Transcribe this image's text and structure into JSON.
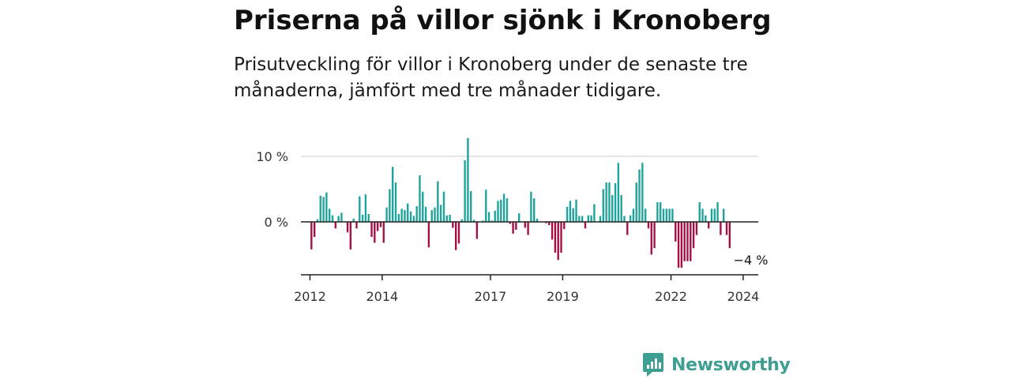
{
  "title": "Priserna på villor sjönk i Kronoberg",
  "subtitle": "Prisutveckling för villor i Kronoberg under de senaste tre månaderna, jämfört med tre månader tidigare.",
  "brand": {
    "name": "Newsworthy",
    "color": "#3e9e92"
  },
  "chart_data": {
    "type": "bar",
    "xlabel": "",
    "ylabel": "",
    "x_start": "2011-10",
    "x_end": "2024-06",
    "ylim": [
      -8,
      10
    ],
    "y_ticks": [
      {
        "value": 0,
        "label": "0 %"
      },
      {
        "value": 10,
        "label": "10 %"
      }
    ],
    "x_ticks": [
      {
        "date": "2012-01",
        "label": "2012"
      },
      {
        "date": "2014-01",
        "label": "2014"
      },
      {
        "date": "2017-01",
        "label": "2017"
      },
      {
        "date": "2019-01",
        "label": "2019"
      },
      {
        "date": "2022-01",
        "label": "2022"
      },
      {
        "date": "2024-01",
        "label": "2024"
      }
    ],
    "grid": "horizontal",
    "colors": {
      "positive": "#1ba39c",
      "negative": "#a50e44"
    },
    "annotations": [
      {
        "date": "2024-03",
        "value": -4,
        "label": "−4 %"
      }
    ],
    "monthly_values": [
      {
        "date": "2012-01",
        "value": -4.2
      },
      {
        "date": "2012-02",
        "value": -2.3
      },
      {
        "date": "2012-03",
        "value": 0.4
      },
      {
        "date": "2012-04",
        "value": 4.0
      },
      {
        "date": "2012-05",
        "value": 3.8
      },
      {
        "date": "2012-06",
        "value": 4.5
      },
      {
        "date": "2012-07",
        "value": 2.0
      },
      {
        "date": "2012-08",
        "value": 1.0
      },
      {
        "date": "2012-09",
        "value": -1.0
      },
      {
        "date": "2012-10",
        "value": 0.9
      },
      {
        "date": "2012-11",
        "value": 1.4
      },
      {
        "date": "2012-12",
        "value": 0.0
      },
      {
        "date": "2013-01",
        "value": -1.6
      },
      {
        "date": "2013-02",
        "value": -4.2
      },
      {
        "date": "2013-03",
        "value": 0.5
      },
      {
        "date": "2013-04",
        "value": -1.0
      },
      {
        "date": "2013-05",
        "value": 3.9
      },
      {
        "date": "2013-06",
        "value": 1.1
      },
      {
        "date": "2013-07",
        "value": 4.2
      },
      {
        "date": "2013-08",
        "value": 1.2
      },
      {
        "date": "2013-09",
        "value": -2.3
      },
      {
        "date": "2013-10",
        "value": -3.2
      },
      {
        "date": "2013-11",
        "value": -1.4
      },
      {
        "date": "2013-12",
        "value": -0.8
      },
      {
        "date": "2014-01",
        "value": -3.2
      },
      {
        "date": "2014-02",
        "value": 2.2
      },
      {
        "date": "2014-03",
        "value": 5.0
      },
      {
        "date": "2014-04",
        "value": 8.4
      },
      {
        "date": "2014-05",
        "value": 6.0
      },
      {
        "date": "2014-06",
        "value": 1.2
      },
      {
        "date": "2014-07",
        "value": 2.0
      },
      {
        "date": "2014-08",
        "value": 1.8
      },
      {
        "date": "2014-09",
        "value": 2.8
      },
      {
        "date": "2014-10",
        "value": 1.6
      },
      {
        "date": "2014-11",
        "value": 0.9
      },
      {
        "date": "2014-12",
        "value": 2.4
      },
      {
        "date": "2015-01",
        "value": 7.1
      },
      {
        "date": "2015-02",
        "value": 4.6
      },
      {
        "date": "2015-03",
        "value": 2.3
      },
      {
        "date": "2015-04",
        "value": -3.9
      },
      {
        "date": "2015-05",
        "value": 1.8
      },
      {
        "date": "2015-06",
        "value": 2.2
      },
      {
        "date": "2015-07",
        "value": 6.2
      },
      {
        "date": "2015-08",
        "value": 2.6
      },
      {
        "date": "2015-09",
        "value": 4.6
      },
      {
        "date": "2015-10",
        "value": 1.0
      },
      {
        "date": "2015-11",
        "value": 1.1
      },
      {
        "date": "2015-12",
        "value": -0.9
      },
      {
        "date": "2016-01",
        "value": -4.3
      },
      {
        "date": "2016-02",
        "value": -3.3
      },
      {
        "date": "2016-03",
        "value": 0.4
      },
      {
        "date": "2016-04",
        "value": 9.4
      },
      {
        "date": "2016-05",
        "value": 12.8
      },
      {
        "date": "2016-06",
        "value": 4.7
      },
      {
        "date": "2016-07",
        "value": 0.3
      },
      {
        "date": "2016-08",
        "value": -2.6
      },
      {
        "date": "2016-09",
        "value": 0.0
      },
      {
        "date": "2016-10",
        "value": 0.2
      },
      {
        "date": "2016-11",
        "value": 4.9
      },
      {
        "date": "2016-12",
        "value": 1.5
      },
      {
        "date": "2017-01",
        "value": 0.2
      },
      {
        "date": "2017-02",
        "value": 1.7
      },
      {
        "date": "2017-03",
        "value": 3.2
      },
      {
        "date": "2017-04",
        "value": 3.4
      },
      {
        "date": "2017-05",
        "value": 4.3
      },
      {
        "date": "2017-06",
        "value": 3.6
      },
      {
        "date": "2017-07",
        "value": -0.3
      },
      {
        "date": "2017-08",
        "value": -1.8
      },
      {
        "date": "2017-09",
        "value": -1.2
      },
      {
        "date": "2017-10",
        "value": 1.3
      },
      {
        "date": "2017-11",
        "value": 0.0
      },
      {
        "date": "2017-12",
        "value": -0.9
      },
      {
        "date": "2018-01",
        "value": -2.0
      },
      {
        "date": "2018-02",
        "value": 4.6
      },
      {
        "date": "2018-03",
        "value": 3.6
      },
      {
        "date": "2018-04",
        "value": 0.5
      },
      {
        "date": "2018-05",
        "value": 0.0
      },
      {
        "date": "2018-06",
        "value": 0.0
      },
      {
        "date": "2018-07",
        "value": -0.2
      },
      {
        "date": "2018-08",
        "value": -0.5
      },
      {
        "date": "2018-09",
        "value": -2.7
      },
      {
        "date": "2018-10",
        "value": -4.7
      },
      {
        "date": "2018-11",
        "value": -5.8
      },
      {
        "date": "2018-12",
        "value": -4.7
      },
      {
        "date": "2019-01",
        "value": -1.1
      },
      {
        "date": "2019-02",
        "value": 2.3
      },
      {
        "date": "2019-03",
        "value": 3.2
      },
      {
        "date": "2019-04",
        "value": 2.1
      },
      {
        "date": "2019-05",
        "value": 3.4
      },
      {
        "date": "2019-06",
        "value": 0.9
      },
      {
        "date": "2019-07",
        "value": 0.9
      },
      {
        "date": "2019-08",
        "value": -1.0
      },
      {
        "date": "2019-09",
        "value": 1.0
      },
      {
        "date": "2019-10",
        "value": 1.0
      },
      {
        "date": "2019-11",
        "value": 2.7
      },
      {
        "date": "2019-12",
        "value": 0.0
      },
      {
        "date": "2020-01",
        "value": 0.9
      },
      {
        "date": "2020-02",
        "value": 5.0
      },
      {
        "date": "2020-03",
        "value": 6.0
      },
      {
        "date": "2020-04",
        "value": 6.0
      },
      {
        "date": "2020-05",
        "value": 4.1
      },
      {
        "date": "2020-06",
        "value": 5.9
      },
      {
        "date": "2020-07",
        "value": 9.0
      },
      {
        "date": "2020-08",
        "value": 4.1
      },
      {
        "date": "2020-09",
        "value": 0.9
      },
      {
        "date": "2020-10",
        "value": -2.0
      },
      {
        "date": "2020-11",
        "value": 1.0
      },
      {
        "date": "2020-12",
        "value": 2.0
      },
      {
        "date": "2021-01",
        "value": 6.0
      },
      {
        "date": "2021-02",
        "value": 8.0
      },
      {
        "date": "2021-03",
        "value": 9.0
      },
      {
        "date": "2021-04",
        "value": 2.0
      },
      {
        "date": "2021-05",
        "value": -1.0
      },
      {
        "date": "2021-06",
        "value": -5.0
      },
      {
        "date": "2021-07",
        "value": -4.0
      },
      {
        "date": "2021-08",
        "value": 3.0
      },
      {
        "date": "2021-09",
        "value": 3.0
      },
      {
        "date": "2021-10",
        "value": 2.0
      },
      {
        "date": "2021-11",
        "value": 2.0
      },
      {
        "date": "2021-12",
        "value": 2.0
      },
      {
        "date": "2022-01",
        "value": 2.0
      },
      {
        "date": "2022-02",
        "value": -3.0
      },
      {
        "date": "2022-03",
        "value": -7.0
      },
      {
        "date": "2022-04",
        "value": -7.0
      },
      {
        "date": "2022-05",
        "value": -6.0
      },
      {
        "date": "2022-06",
        "value": -6.0
      },
      {
        "date": "2022-07",
        "value": -6.0
      },
      {
        "date": "2022-08",
        "value": -4.0
      },
      {
        "date": "2022-09",
        "value": -2.0
      },
      {
        "date": "2022-10",
        "value": 3.0
      },
      {
        "date": "2022-11",
        "value": 2.0
      },
      {
        "date": "2022-12",
        "value": 1.0
      },
      {
        "date": "2023-01",
        "value": -1.0
      },
      {
        "date": "2023-02",
        "value": 2.0
      },
      {
        "date": "2023-03",
        "value": 2.0
      },
      {
        "date": "2023-04",
        "value": 3.0
      },
      {
        "date": "2023-05",
        "value": -2.0
      },
      {
        "date": "2023-06",
        "value": 2.0
      },
      {
        "date": "2023-07",
        "value": -2.0
      },
      {
        "date": "2023-08",
        "value": -4.0
      }
    ]
  }
}
